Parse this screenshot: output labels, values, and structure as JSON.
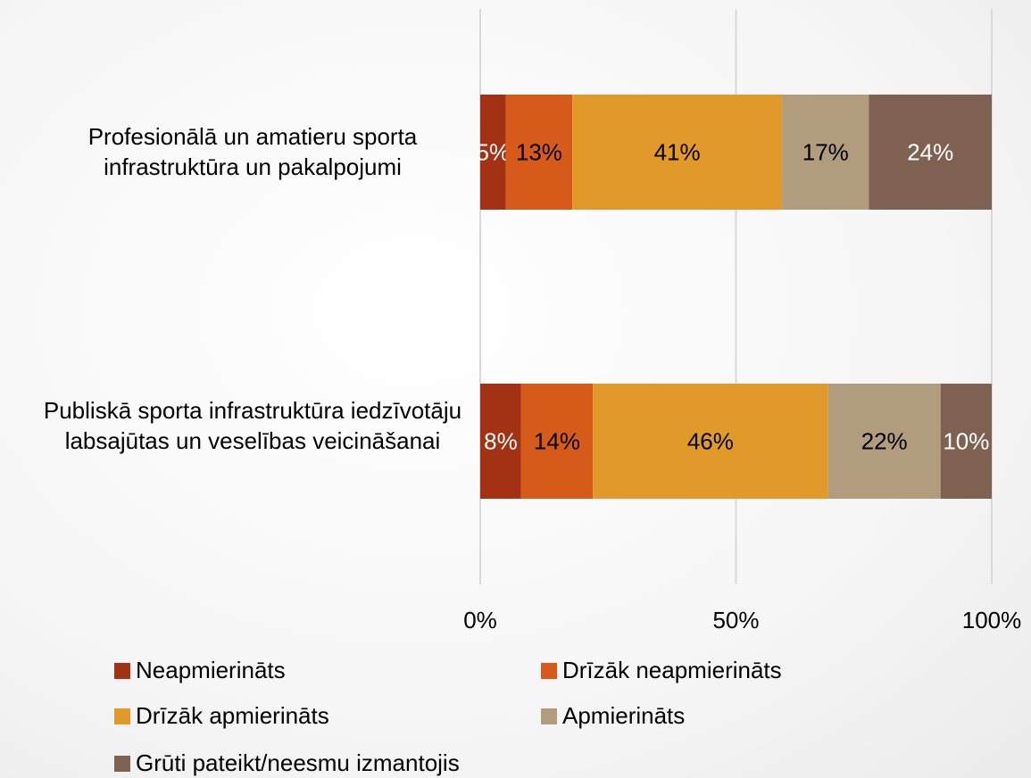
{
  "chart_data": {
    "type": "stacked_barh",
    "categories": [
      "Profesionālā un amatieru sporta infrastruktūra un pakalpojumi",
      "Publiskā sporta infrastruktūra iedzīvotāju labsajūtas un veselības veicināšanai"
    ],
    "series": [
      {
        "name": "Neapmierināts",
        "color": "#a33113",
        "values": [
          5,
          8
        ],
        "value_labels": [
          "5%",
          "8%"
        ]
      },
      {
        "name": "Drīzāk neapmierināts",
        "color": "#d65a1a",
        "values": [
          13,
          14
        ],
        "value_labels": [
          "13%",
          "14%"
        ]
      },
      {
        "name": "Drīzāk apmierināts",
        "color": "#e19a2a",
        "values": [
          41,
          46
        ],
        "value_labels": [
          "41%",
          "46%"
        ]
      },
      {
        "name": "Apmierināts",
        "color": "#b19c7e",
        "values": [
          17,
          22
        ],
        "value_labels": [
          "17%",
          "22%"
        ]
      },
      {
        "name": "Grūti pateikt/neesmu izmantojis",
        "color": "#7e6150",
        "values": [
          24,
          10
        ],
        "value_labels": [
          "24%",
          "10%"
        ]
      }
    ],
    "xlim": [
      0,
      100
    ],
    "xticks": [
      {
        "value": 0,
        "label": "0%"
      },
      {
        "value": 50,
        "label": "50%"
      },
      {
        "value": 100,
        "label": "100%"
      }
    ],
    "grid": true
  }
}
